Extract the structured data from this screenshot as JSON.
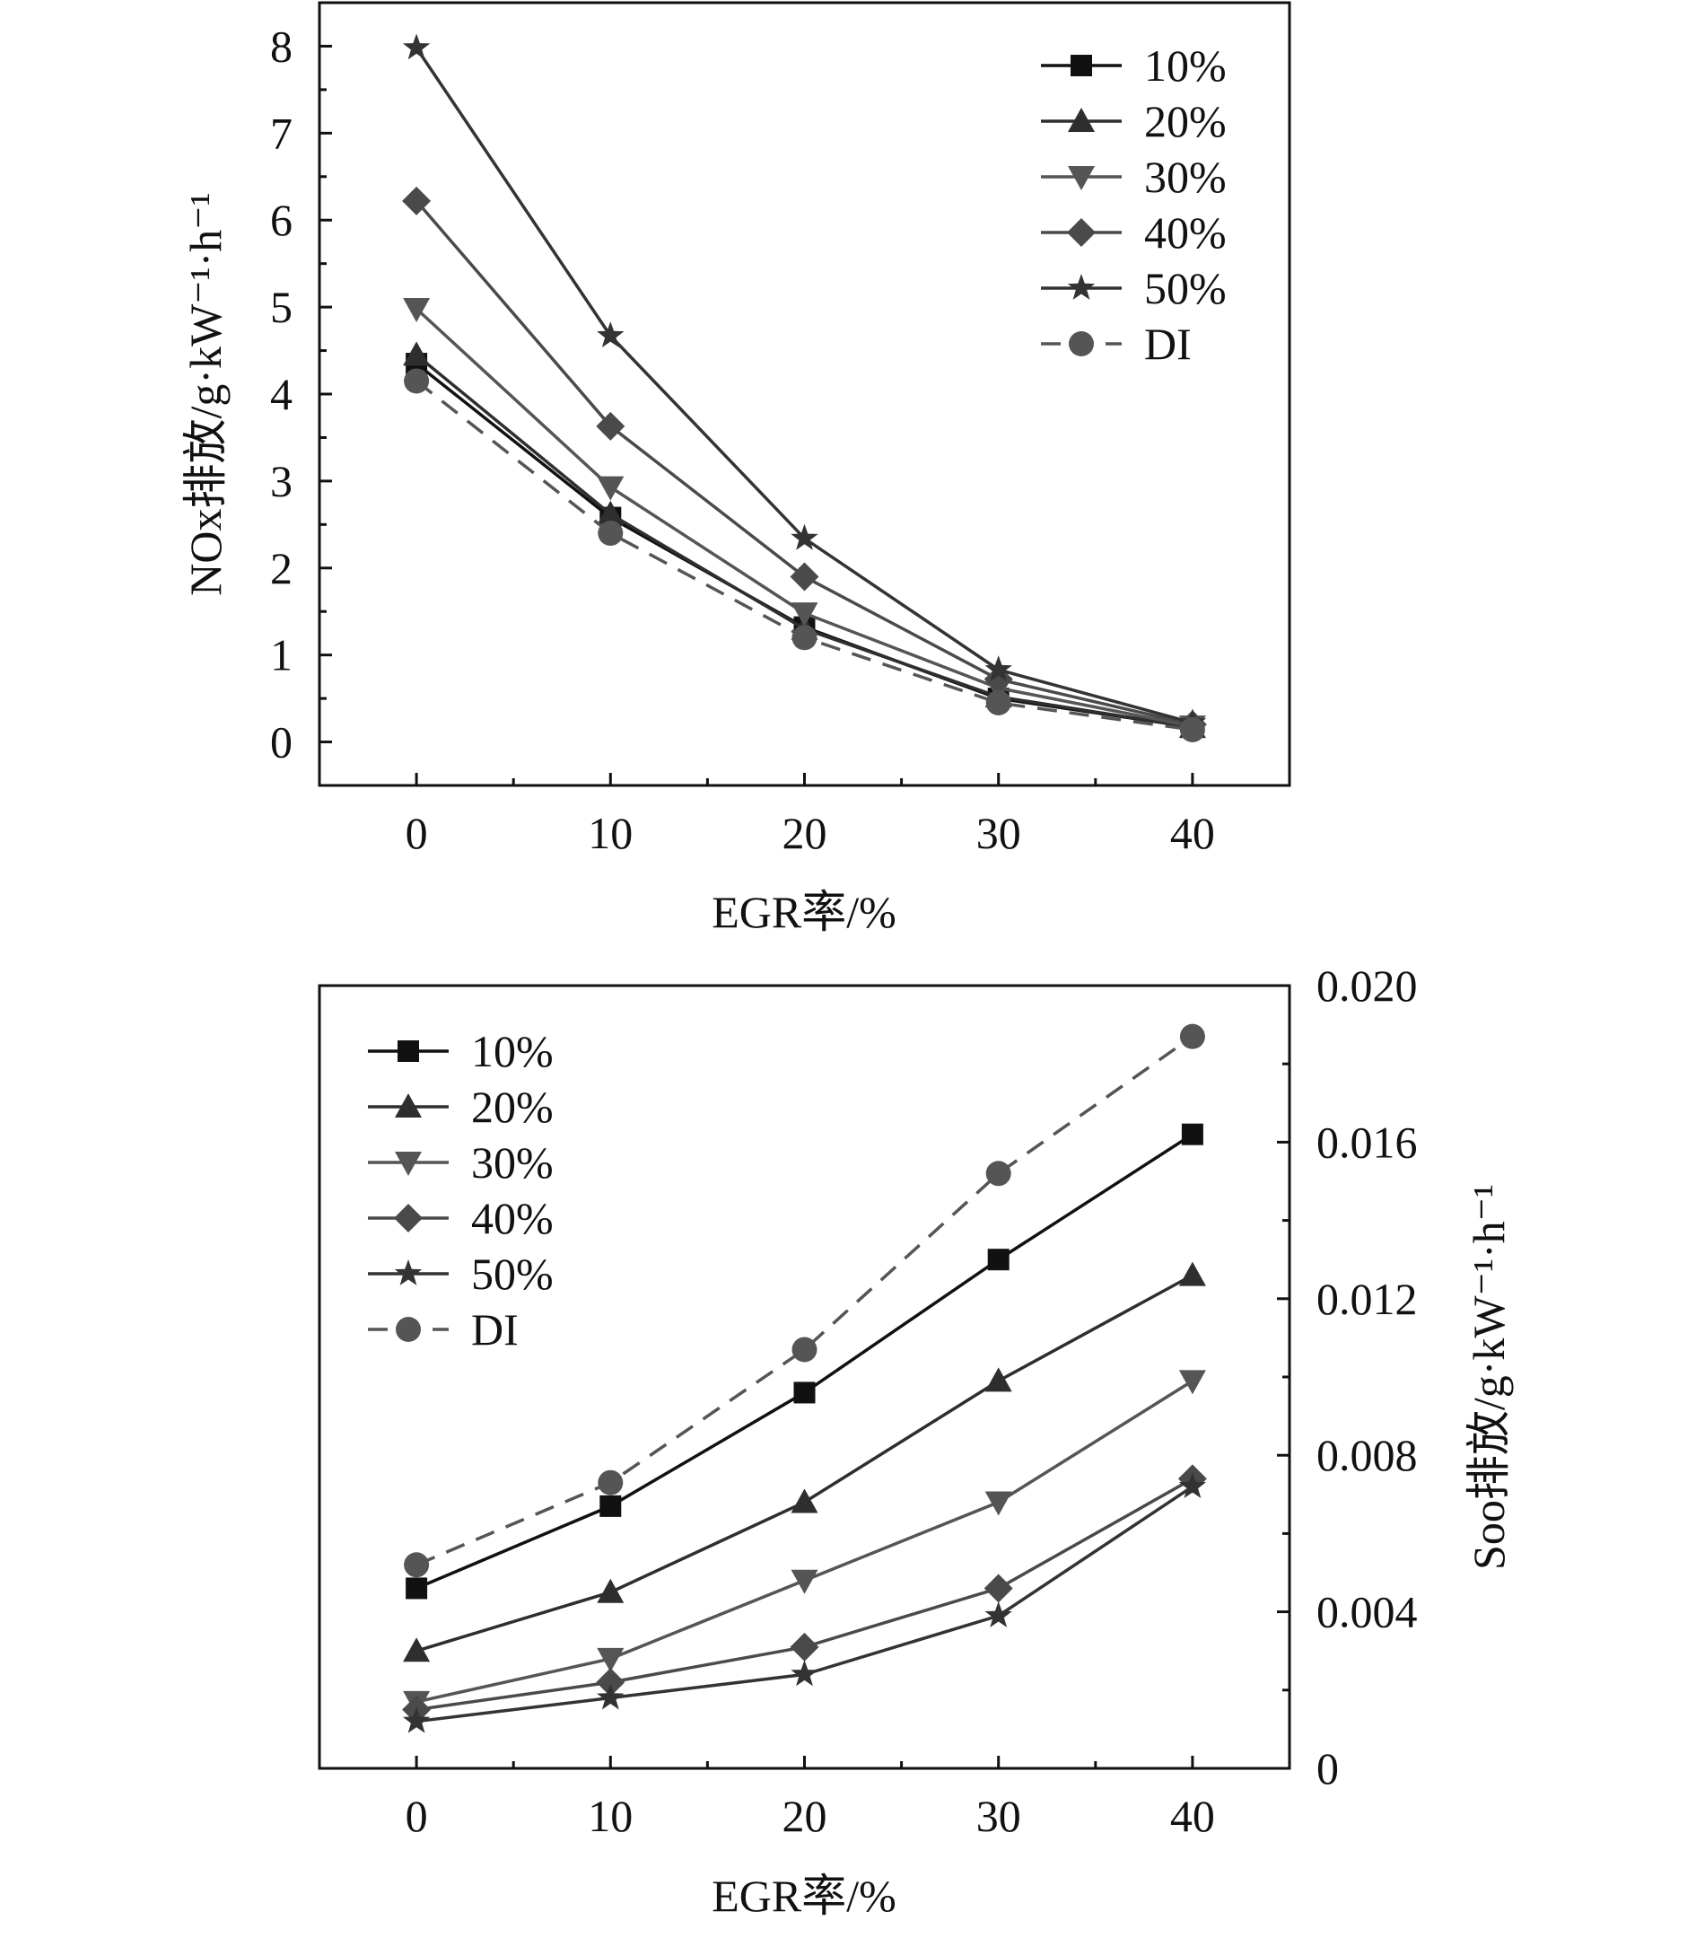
{
  "chart_data": [
    {
      "type": "line",
      "title": "",
      "xlabel": "EGR率/%",
      "ylabel": "NOx排放/g·kW⁻¹·h⁻¹",
      "x": [
        0,
        10,
        20,
        30,
        40
      ],
      "x_ticks": [
        "0",
        "10",
        "20",
        "30",
        "40"
      ],
      "xlim": [
        -5,
        45
      ],
      "ylim": [
        -0.5,
        8.5
      ],
      "y_ticks": [
        "0",
        "1",
        "2",
        "3",
        "4",
        "5",
        "6",
        "7",
        "8"
      ],
      "y_axis_side": "left",
      "legend_position": "top-right",
      "series": [
        {
          "name": "10%",
          "values": [
            4.35,
            2.58,
            1.32,
            0.5,
            0.17
          ],
          "marker": "square",
          "color": "#111111",
          "dash": false
        },
        {
          "name": "20%",
          "values": [
            4.45,
            2.62,
            1.3,
            0.52,
            0.17
          ],
          "marker": "triangle-up",
          "color": "#2e2e2e",
          "dash": false
        },
        {
          "name": "30%",
          "values": [
            4.98,
            2.93,
            1.48,
            0.62,
            0.18
          ],
          "marker": "triangle-down",
          "color": "#555555",
          "dash": false
        },
        {
          "name": "40%",
          "values": [
            6.22,
            3.63,
            1.9,
            0.72,
            0.2
          ],
          "marker": "diamond",
          "color": "#4a4a4a",
          "dash": false
        },
        {
          "name": "50%",
          "values": [
            7.98,
            4.67,
            2.34,
            0.83,
            0.22
          ],
          "marker": "star",
          "color": "#333333",
          "dash": false
        },
        {
          "name": "DI",
          "values": [
            4.15,
            2.4,
            1.2,
            0.45,
            0.14
          ],
          "marker": "circle",
          "color": "#555555",
          "dash": true
        }
      ]
    },
    {
      "type": "line",
      "title": "",
      "xlabel": "EGR率/%",
      "ylabel": "Soo排放/g·kW⁻¹·h⁻¹",
      "x": [
        0,
        10,
        20,
        30,
        40
      ],
      "x_ticks": [
        "0",
        "10",
        "20",
        "30",
        "40"
      ],
      "xlim": [
        -5,
        45
      ],
      "ylim": [
        0,
        0.02
      ],
      "y_ticks": [
        "0",
        "0.004",
        "0.008",
        "0.012",
        "0.016",
        "0.020"
      ],
      "y_axis_side": "right",
      "legend_position": "top-left",
      "series": [
        {
          "name": "10%",
          "values": [
            0.0046,
            0.0067,
            0.0096,
            0.013,
            0.0162
          ],
          "marker": "square",
          "color": "#111111",
          "dash": false
        },
        {
          "name": "20%",
          "values": [
            0.003,
            0.0045,
            0.0068,
            0.0099,
            0.0126
          ],
          "marker": "triangle-up",
          "color": "#2e2e2e",
          "dash": false
        },
        {
          "name": "30%",
          "values": [
            0.0017,
            0.0028,
            0.0048,
            0.0068,
            0.0099
          ],
          "marker": "triangle-down",
          "color": "#555555",
          "dash": false
        },
        {
          "name": "40%",
          "values": [
            0.0015,
            0.0022,
            0.0031,
            0.0046,
            0.0074
          ],
          "marker": "diamond",
          "color": "#4a4a4a",
          "dash": false
        },
        {
          "name": "50%",
          "values": [
            0.0012,
            0.0018,
            0.0024,
            0.0039,
            0.0072
          ],
          "marker": "star",
          "color": "#333333",
          "dash": false
        },
        {
          "name": "DI",
          "values": [
            0.0052,
            0.0073,
            0.0107,
            0.0152,
            0.0187
          ],
          "marker": "circle",
          "color": "#555555",
          "dash": true
        }
      ]
    }
  ]
}
